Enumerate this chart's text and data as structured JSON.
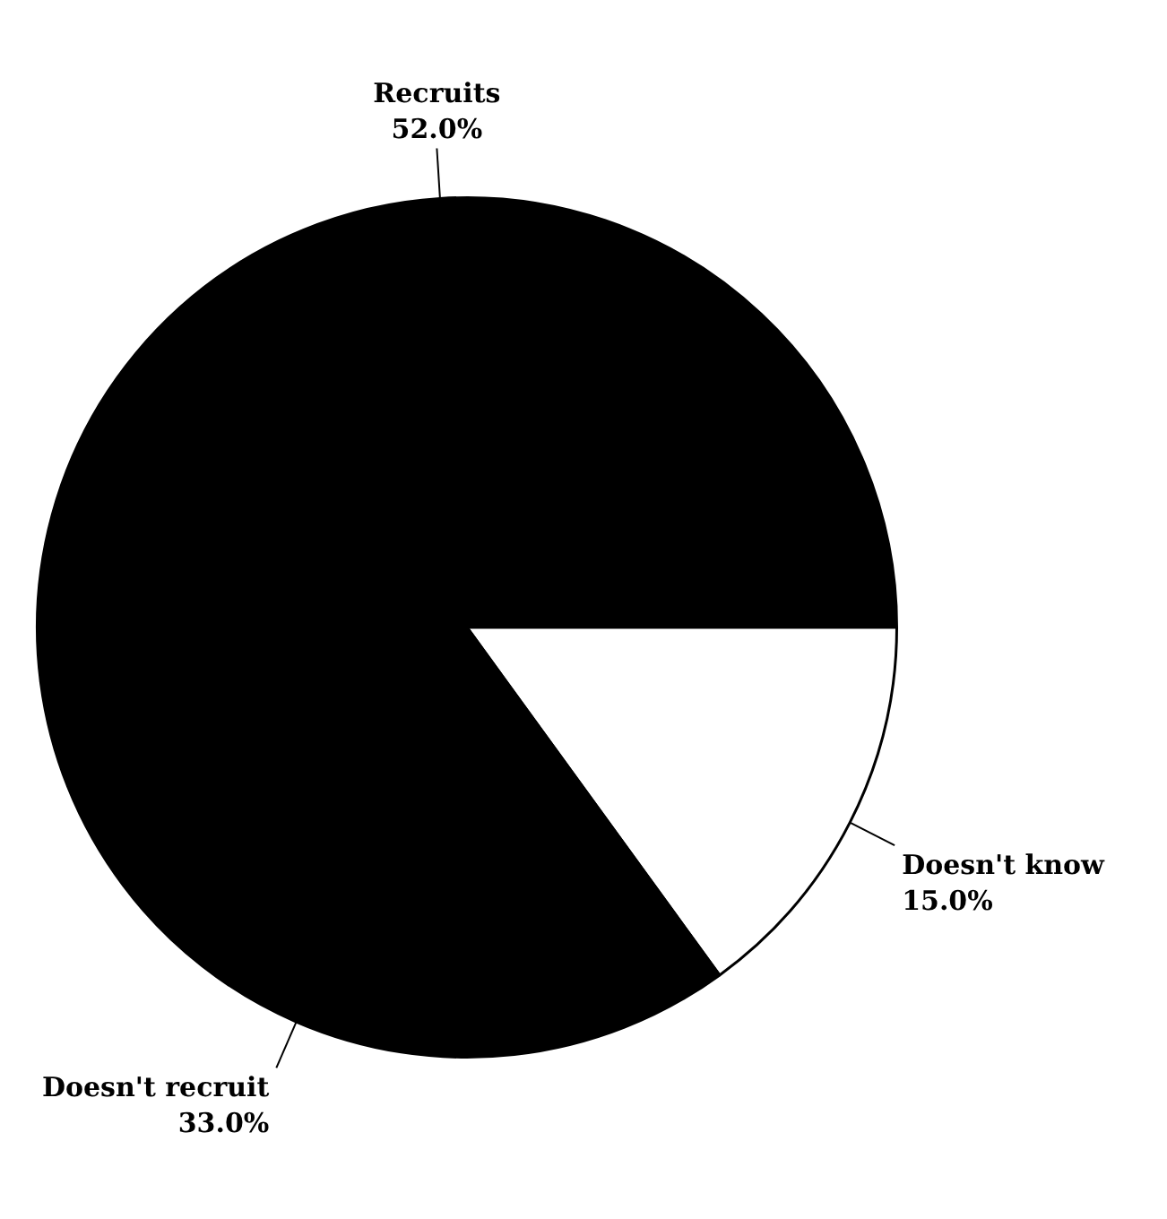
{
  "chart_data": {
    "type": "pie",
    "categories": [
      "Recruits",
      "Doesn't know",
      "Doesn't recruit"
    ],
    "values": [
      52,
      15,
      33
    ],
    "colors": [
      "#000000",
      "#ffffff",
      "#000000"
    ],
    "value_labels": [
      "52.0%",
      "15.0%",
      "33.0%"
    ]
  }
}
